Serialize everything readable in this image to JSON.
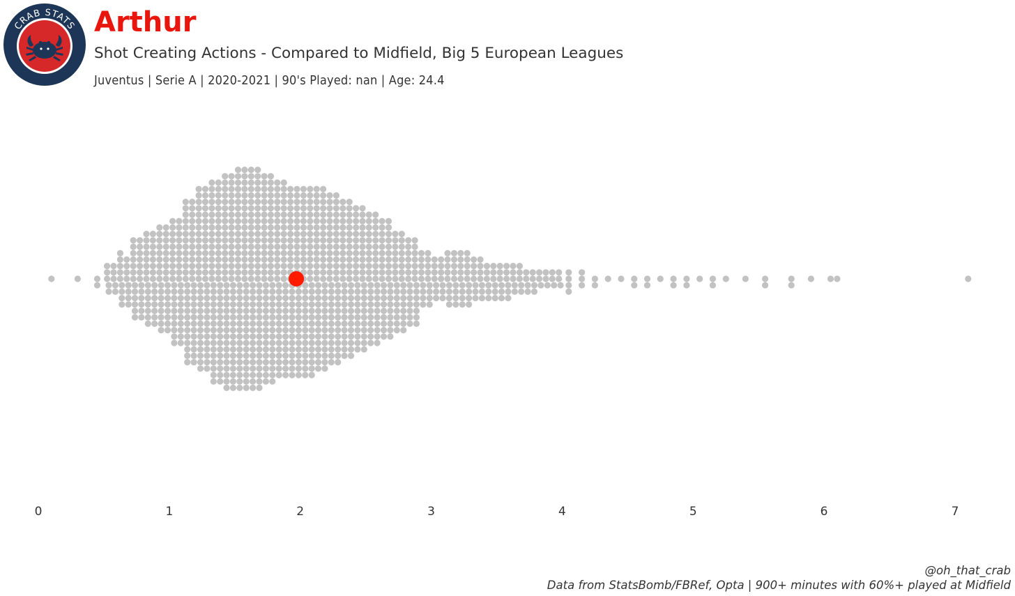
{
  "header": {
    "logo_text": "CRAB STATS",
    "player_name": "Arthur",
    "subtitle": "Shot Creating Actions - Compared to Midfield, Big 5 European Leagues",
    "info_line": "Juventus  | Serie A | 2020-2021 | 90's Played: nan | Age: 24.4"
  },
  "footer": {
    "handle": "@oh_that_crab",
    "source": "Data from StatsBomb/FBRef, Opta | 900+ minutes with 60%+ played at Midfield"
  },
  "colors": {
    "title": "#e8160d",
    "highlight": "#ff1a00",
    "population": "#c2c2c2",
    "logo_ring": "#1d3557",
    "logo_inner": "#d62828"
  },
  "chart_data": {
    "type": "scatter",
    "subtype": "beeswarm",
    "xlabel": "",
    "ylabel": "",
    "xlim": [
      0,
      7
    ],
    "xticks": [
      0,
      1,
      2,
      3,
      4,
      5,
      6,
      7
    ],
    "grid": false,
    "highlight": {
      "name": "Arthur",
      "x": 1.97
    },
    "distribution_bins": [
      {
        "x": 0.1,
        "count": 1
      },
      {
        "x": 0.3,
        "count": 1
      },
      {
        "x": 0.45,
        "count": 2
      },
      {
        "x": 0.55,
        "count": 10
      },
      {
        "x": 0.65,
        "count": 17
      },
      {
        "x": 0.75,
        "count": 26
      },
      {
        "x": 0.85,
        "count": 30
      },
      {
        "x": 0.95,
        "count": 34
      },
      {
        "x": 1.05,
        "count": 40
      },
      {
        "x": 1.15,
        "count": 52
      },
      {
        "x": 1.25,
        "count": 58
      },
      {
        "x": 1.35,
        "count": 64
      },
      {
        "x": 1.45,
        "count": 68
      },
      {
        "x": 1.55,
        "count": 70
      },
      {
        "x": 1.65,
        "count": 70
      },
      {
        "x": 1.75,
        "count": 66
      },
      {
        "x": 1.85,
        "count": 62
      },
      {
        "x": 1.95,
        "count": 60
      },
      {
        "x": 2.05,
        "count": 60
      },
      {
        "x": 2.15,
        "count": 58
      },
      {
        "x": 2.25,
        "count": 54
      },
      {
        "x": 2.35,
        "count": 50
      },
      {
        "x": 2.45,
        "count": 46
      },
      {
        "x": 2.55,
        "count": 42
      },
      {
        "x": 2.65,
        "count": 38
      },
      {
        "x": 2.75,
        "count": 32
      },
      {
        "x": 2.85,
        "count": 28
      },
      {
        "x": 2.95,
        "count": 18
      },
      {
        "x": 3.05,
        "count": 14
      },
      {
        "x": 3.15,
        "count": 18
      },
      {
        "x": 3.25,
        "count": 18
      },
      {
        "x": 3.35,
        "count": 14
      },
      {
        "x": 3.45,
        "count": 12
      },
      {
        "x": 3.55,
        "count": 12
      },
      {
        "x": 3.65,
        "count": 10
      },
      {
        "x": 3.75,
        "count": 8
      },
      {
        "x": 3.85,
        "count": 6
      },
      {
        "x": 3.95,
        "count": 6
      },
      {
        "x": 4.05,
        "count": 4
      },
      {
        "x": 4.15,
        "count": 3
      },
      {
        "x": 4.25,
        "count": 2
      },
      {
        "x": 4.35,
        "count": 1
      },
      {
        "x": 4.45,
        "count": 1
      },
      {
        "x": 4.55,
        "count": 2
      },
      {
        "x": 4.65,
        "count": 2
      },
      {
        "x": 4.75,
        "count": 1
      },
      {
        "x": 4.85,
        "count": 2
      },
      {
        "x": 4.95,
        "count": 2
      },
      {
        "x": 5.05,
        "count": 1
      },
      {
        "x": 5.15,
        "count": 2
      },
      {
        "x": 5.25,
        "count": 1
      },
      {
        "x": 5.4,
        "count": 1
      },
      {
        "x": 5.55,
        "count": 2
      },
      {
        "x": 5.75,
        "count": 2
      },
      {
        "x": 5.9,
        "count": 1
      },
      {
        "x": 6.05,
        "count": 1
      },
      {
        "x": 6.1,
        "count": 1
      },
      {
        "x": 7.1,
        "count": 1
      }
    ]
  }
}
